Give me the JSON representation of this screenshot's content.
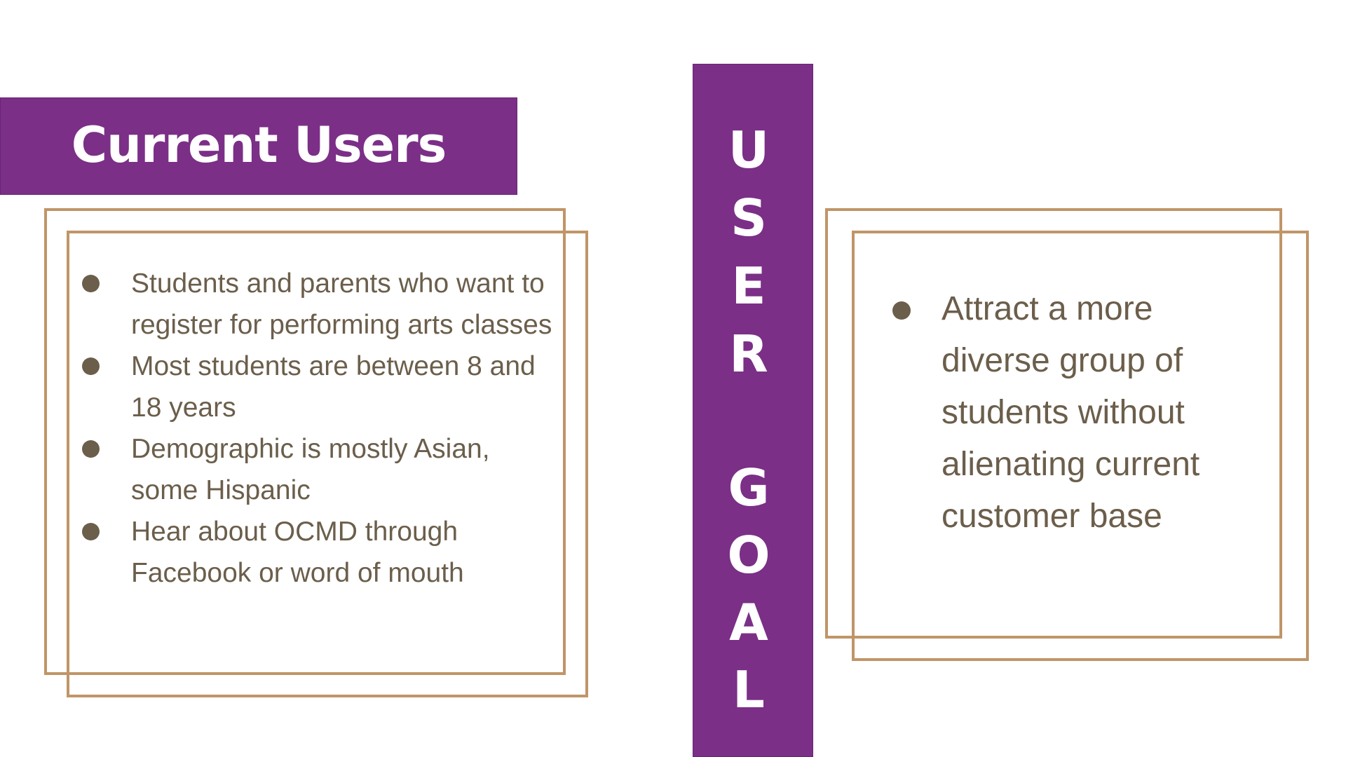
{
  "left_panel": {
    "title": "Current Users",
    "bullets": [
      "Students and parents who want to register for performing arts classes",
      "Most students are between 8 and 18 years",
      "Demographic is mostly Asian, some Hispanic",
      "Hear about OCMD through Facebook or word of mouth"
    ]
  },
  "vertical_label": {
    "letters": [
      "U",
      "S",
      "E",
      "R",
      "G",
      "O",
      "A",
      "L"
    ]
  },
  "right_panel": {
    "bullets": [
      "Attract a more diverse group of students without alienating current customer base"
    ]
  },
  "colors": {
    "banner_purple": "#7b2f87",
    "frame_tan": "#c09568",
    "text_brown": "#6b5e4b"
  }
}
